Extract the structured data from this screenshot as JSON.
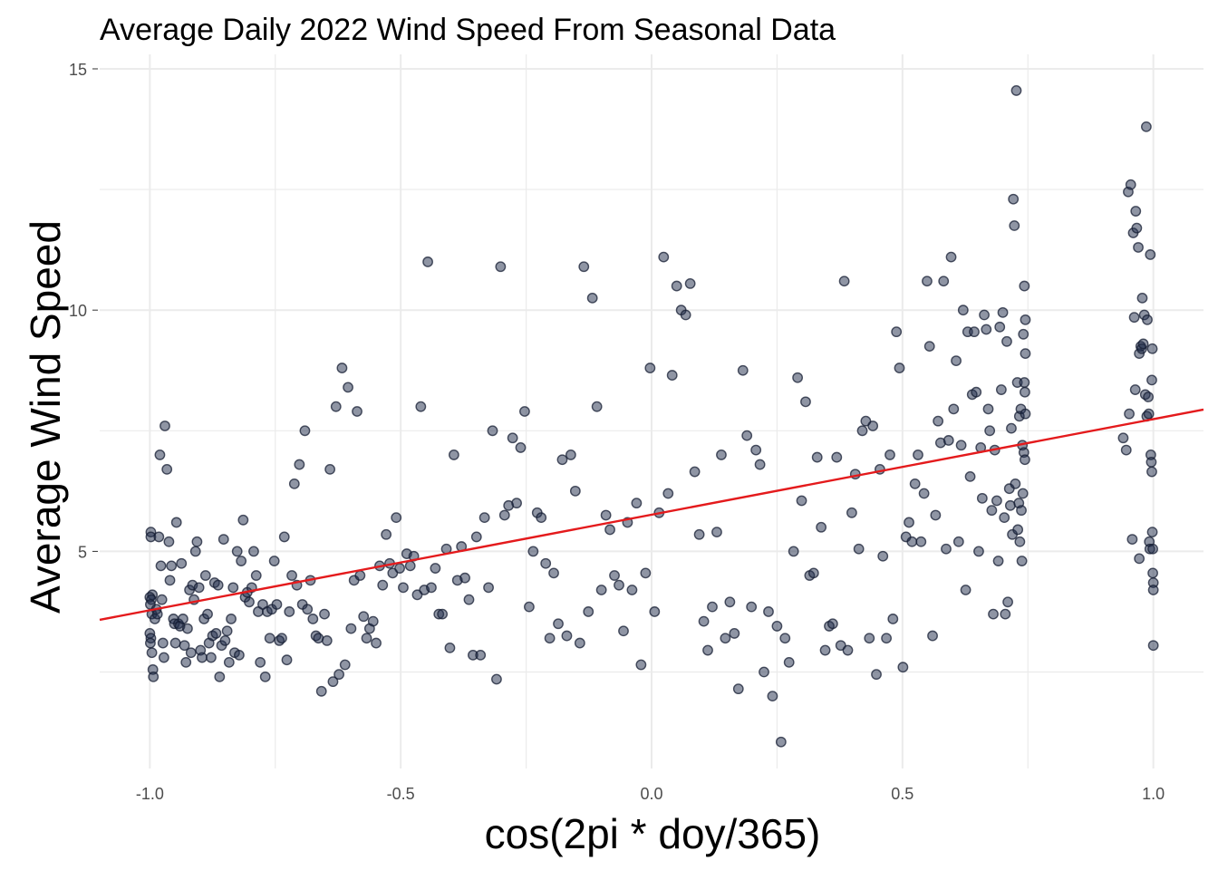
{
  "chart_data": {
    "type": "scatter",
    "title": "Average Daily 2022 Wind Speed From Seasonal Data",
    "xlabel": "cos(2pi * doy/365)",
    "ylabel": "Average Wind Speed",
    "xlim": [
      -1.1,
      1.1
    ],
    "ylim": [
      0.5,
      15.3
    ],
    "x_ticks": [
      -1.0,
      -0.5,
      0.0,
      0.5,
      1.0
    ],
    "x_tick_labels": [
      "-1.0",
      "-0.5",
      "0.0",
      "0.5",
      "1.0"
    ],
    "y_ticks": [
      5,
      10,
      15
    ],
    "y_tick_labels": [
      "5",
      "10",
      "15"
    ],
    "grid": true,
    "point_color": "#1f2b49",
    "fit_color": "#e41a1c",
    "fit_line": {
      "intercept": 5.76,
      "slope": 1.98
    },
    "points": [
      [
        -0.998,
        5.4
      ],
      [
        -0.998,
        5.3
      ],
      [
        -0.995,
        4.1
      ],
      [
        -1.0,
        4.05
      ],
      [
        -0.997,
        4.0
      ],
      [
        -0.999,
        3.9
      ],
      [
        -0.996,
        3.7
      ],
      [
        -1.0,
        3.3
      ],
      [
        -0.998,
        3.2
      ],
      [
        -0.999,
        3.1
      ],
      [
        -0.996,
        2.9
      ],
      [
        -0.994,
        2.55
      ],
      [
        -0.993,
        2.4
      ],
      [
        -0.99,
        3.6
      ],
      [
        -0.987,
        3.8
      ],
      [
        -0.985,
        3.7
      ],
      [
        -0.982,
        5.3
      ],
      [
        -0.98,
        7.0
      ],
      [
        -0.978,
        4.7
      ],
      [
        -0.976,
        4.0
      ],
      [
        -0.974,
        3.1
      ],
      [
        -0.972,
        2.8
      ],
      [
        -0.97,
        7.6
      ],
      [
        -0.966,
        6.7
      ],
      [
        -0.962,
        5.2
      ],
      [
        -0.96,
        4.4
      ],
      [
        -0.957,
        4.7
      ],
      [
        -0.953,
        3.6
      ],
      [
        -0.951,
        3.5
      ],
      [
        -0.949,
        3.1
      ],
      [
        -0.947,
        5.6
      ],
      [
        -0.943,
        3.5
      ],
      [
        -0.94,
        3.45
      ],
      [
        -0.937,
        4.75
      ],
      [
        -0.934,
        3.6
      ],
      [
        -0.931,
        3.05
      ],
      [
        -0.928,
        2.7
      ],
      [
        -0.925,
        3.4
      ],
      [
        -0.921,
        4.2
      ],
      [
        -0.918,
        2.9
      ],
      [
        -0.915,
        4.3
      ],
      [
        -0.912,
        4.0
      ],
      [
        -0.909,
        5.0
      ],
      [
        -0.906,
        5.2
      ],
      [
        -0.902,
        4.25
      ],
      [
        -0.899,
        2.95
      ],
      [
        -0.896,
        2.8
      ],
      [
        -0.892,
        3.6
      ],
      [
        -0.889,
        4.5
      ],
      [
        -0.885,
        3.7
      ],
      [
        -0.882,
        3.1
      ],
      [
        -0.878,
        2.8
      ],
      [
        -0.875,
        3.25
      ],
      [
        -0.871,
        4.35
      ],
      [
        -0.868,
        3.3
      ],
      [
        -0.864,
        4.3
      ],
      [
        -0.861,
        2.4
      ],
      [
        -0.857,
        3.05
      ],
      [
        -0.853,
        5.25
      ],
      [
        -0.85,
        3.15
      ],
      [
        -0.846,
        3.35
      ],
      [
        -0.842,
        2.7
      ],
      [
        -0.838,
        3.6
      ],
      [
        -0.834,
        4.25
      ],
      [
        -0.831,
        2.9
      ],
      [
        -0.826,
        5.0
      ],
      [
        -0.822,
        2.85
      ],
      [
        -0.818,
        4.8
      ],
      [
        -0.814,
        5.65
      ],
      [
        -0.81,
        4.05
      ],
      [
        -0.806,
        4.15
      ],
      [
        -0.802,
        3.95
      ],
      [
        -0.797,
        4.25
      ],
      [
        -0.793,
        5.0
      ],
      [
        -0.788,
        4.5
      ],
      [
        -0.784,
        3.75
      ],
      [
        -0.78,
        2.7
      ],
      [
        -0.775,
        3.9
      ],
      [
        -0.77,
        2.4
      ],
      [
        -0.766,
        3.75
      ],
      [
        -0.761,
        3.2
      ],
      [
        -0.757,
        3.8
      ],
      [
        -0.752,
        4.8
      ],
      [
        -0.747,
        3.9
      ],
      [
        -0.742,
        3.15
      ],
      [
        -0.737,
        3.2
      ],
      [
        -0.732,
        5.3
      ],
      [
        -0.727,
        2.75
      ],
      [
        -0.722,
        3.75
      ],
      [
        -0.717,
        4.5
      ],
      [
        -0.712,
        6.4
      ],
      [
        -0.707,
        4.3
      ],
      [
        -0.702,
        6.8
      ],
      [
        -0.696,
        3.9
      ],
      [
        -0.691,
        7.5
      ],
      [
        -0.686,
        3.8
      ],
      [
        -0.68,
        4.4
      ],
      [
        -0.675,
        3.6
      ],
      [
        -0.669,
        3.25
      ],
      [
        -0.664,
        3.2
      ],
      [
        -0.658,
        2.1
      ],
      [
        -0.652,
        3.7
      ],
      [
        -0.647,
        3.15
      ],
      [
        -0.641,
        6.7
      ],
      [
        -0.635,
        2.3
      ],
      [
        -0.629,
        8.0
      ],
      [
        -0.623,
        2.45
      ],
      [
        -0.617,
        8.8
      ],
      [
        -0.611,
        2.65
      ],
      [
        -0.605,
        8.4
      ],
      [
        -0.599,
        3.4
      ],
      [
        -0.593,
        4.4
      ],
      [
        -0.587,
        7.9
      ],
      [
        -0.581,
        4.5
      ],
      [
        -0.574,
        3.65
      ],
      [
        -0.568,
        3.2
      ],
      [
        -0.562,
        3.4
      ],
      [
        -0.555,
        3.55
      ],
      [
        -0.549,
        3.1
      ],
      [
        -0.542,
        4.7
      ],
      [
        -0.536,
        4.3
      ],
      [
        -0.529,
        5.35
      ],
      [
        -0.522,
        4.75
      ],
      [
        -0.516,
        4.55
      ],
      [
        -0.509,
        5.7
      ],
      [
        -0.502,
        4.65
      ],
      [
        -0.495,
        4.25
      ],
      [
        -0.488,
        4.95
      ],
      [
        -0.481,
        4.7
      ],
      [
        -0.474,
        4.9
      ],
      [
        -0.467,
        4.1
      ],
      [
        -0.46,
        8.0
      ],
      [
        -0.453,
        4.2
      ],
      [
        -0.446,
        11.0
      ],
      [
        -0.439,
        4.25
      ],
      [
        -0.431,
        4.65
      ],
      [
        -0.424,
        3.7
      ],
      [
        -0.417,
        3.7
      ],
      [
        -0.409,
        5.05
      ],
      [
        -0.402,
        3.0
      ],
      [
        -0.394,
        7.0
      ],
      [
        -0.387,
        4.4
      ],
      [
        -0.379,
        5.1
      ],
      [
        -0.372,
        4.45
      ],
      [
        -0.364,
        4.0
      ],
      [
        -0.356,
        2.85
      ],
      [
        -0.349,
        5.3
      ],
      [
        -0.341,
        2.85
      ],
      [
        -0.333,
        5.7
      ],
      [
        -0.325,
        4.25
      ],
      [
        -0.317,
        7.5
      ],
      [
        -0.309,
        2.35
      ],
      [
        -0.301,
        10.9
      ],
      [
        -0.293,
        5.75
      ],
      [
        -0.285,
        5.95
      ],
      [
        -0.277,
        7.35
      ],
      [
        -0.269,
        6.0
      ],
      [
        -0.261,
        7.15
      ],
      [
        -0.253,
        7.9
      ],
      [
        -0.244,
        3.85
      ],
      [
        -0.236,
        5.0
      ],
      [
        -0.228,
        5.8
      ],
      [
        -0.22,
        5.7
      ],
      [
        -0.211,
        4.75
      ],
      [
        -0.203,
        3.2
      ],
      [
        -0.195,
        4.55
      ],
      [
        -0.186,
        3.5
      ],
      [
        -0.178,
        6.9
      ],
      [
        -0.169,
        3.25
      ],
      [
        -0.161,
        7.0
      ],
      [
        -0.152,
        6.25
      ],
      [
        -0.143,
        3.1
      ],
      [
        -0.135,
        10.9
      ],
      [
        -0.126,
        3.75
      ],
      [
        -0.118,
        10.25
      ],
      [
        -0.109,
        8.0
      ],
      [
        -0.1,
        4.2
      ],
      [
        -0.091,
        5.75
      ],
      [
        -0.083,
        5.45
      ],
      [
        -0.074,
        4.5
      ],
      [
        -0.065,
        4.3
      ],
      [
        -0.056,
        3.35
      ],
      [
        -0.048,
        5.6
      ],
      [
        -0.039,
        4.2
      ],
      [
        -0.03,
        6.0
      ],
      [
        -0.021,
        2.65
      ],
      [
        -0.012,
        4.55
      ],
      [
        -0.003,
        8.8
      ],
      [
        0.006,
        3.75
      ],
      [
        0.015,
        5.8
      ],
      [
        0.024,
        11.1
      ],
      [
        0.033,
        6.2
      ],
      [
        0.041,
        8.65
      ],
      [
        0.05,
        10.5
      ],
      [
        0.059,
        10.0
      ],
      [
        0.068,
        9.9
      ],
      [
        0.077,
        10.55
      ],
      [
        0.086,
        6.65
      ],
      [
        0.095,
        5.35
      ],
      [
        0.104,
        3.55
      ],
      [
        0.112,
        2.95
      ],
      [
        0.121,
        3.85
      ],
      [
        0.13,
        5.4
      ],
      [
        0.139,
        7.0
      ],
      [
        0.147,
        3.2
      ],
      [
        0.156,
        3.95
      ],
      [
        0.165,
        3.3
      ],
      [
        0.173,
        2.15
      ],
      [
        0.182,
        8.75
      ],
      [
        0.19,
        7.4
      ],
      [
        0.199,
        3.85
      ],
      [
        0.208,
        7.1
      ],
      [
        0.216,
        6.8
      ],
      [
        0.224,
        2.5
      ],
      [
        0.233,
        3.75
      ],
      [
        0.241,
        2.0
      ],
      [
        0.25,
        3.45
      ],
      [
        0.258,
        1.05
      ],
      [
        0.266,
        3.2
      ],
      [
        0.274,
        2.7
      ],
      [
        0.283,
        5.0
      ],
      [
        0.291,
        8.6
      ],
      [
        0.299,
        6.05
      ],
      [
        0.307,
        8.1
      ],
      [
        0.315,
        4.5
      ],
      [
        0.323,
        4.55
      ],
      [
        0.33,
        6.95
      ],
      [
        0.338,
        5.5
      ],
      [
        0.346,
        2.95
      ],
      [
        0.354,
        3.45
      ],
      [
        0.361,
        3.5
      ],
      [
        0.369,
        6.95
      ],
      [
        0.377,
        3.05
      ],
      [
        0.384,
        10.6
      ],
      [
        0.391,
        2.95
      ],
      [
        0.399,
        5.8
      ],
      [
        0.406,
        6.6
      ],
      [
        0.413,
        5.05
      ],
      [
        0.42,
        7.5
      ],
      [
        0.427,
        7.7
      ],
      [
        0.434,
        3.2
      ],
      [
        0.441,
        7.6
      ],
      [
        0.448,
        2.45
      ],
      [
        0.455,
        6.7
      ],
      [
        0.461,
        4.9
      ],
      [
        0.468,
        3.2
      ],
      [
        0.475,
        7.0
      ],
      [
        0.481,
        3.6
      ],
      [
        0.488,
        9.55
      ],
      [
        0.494,
        8.8
      ],
      [
        0.501,
        2.6
      ],
      [
        0.507,
        5.3
      ],
      [
        0.513,
        5.6
      ],
      [
        0.519,
        5.2
      ],
      [
        0.525,
        6.4
      ],
      [
        0.531,
        7.0
      ],
      [
        0.537,
        5.2
      ],
      [
        0.543,
        6.2
      ],
      [
        0.549,
        10.6
      ],
      [
        0.554,
        9.25
      ],
      [
        0.56,
        3.25
      ],
      [
        0.566,
        5.75
      ],
      [
        0.571,
        7.7
      ],
      [
        0.576,
        7.25
      ],
      [
        0.582,
        10.6
      ],
      [
        0.587,
        5.05
      ],
      [
        0.592,
        7.3
      ],
      [
        0.597,
        11.1
      ],
      [
        0.602,
        7.95
      ],
      [
        0.607,
        8.95
      ],
      [
        0.612,
        5.2
      ],
      [
        0.617,
        7.2
      ],
      [
        0.621,
        10.0
      ],
      [
        0.626,
        4.2
      ],
      [
        0.63,
        9.55
      ],
      [
        0.635,
        6.55
      ],
      [
        0.639,
        8.25
      ],
      [
        0.643,
        9.55
      ],
      [
        0.647,
        8.3
      ],
      [
        0.652,
        5.0
      ],
      [
        0.656,
        7.15
      ],
      [
        0.659,
        6.1
      ],
      [
        0.663,
        9.9
      ],
      [
        0.667,
        9.6
      ],
      [
        0.671,
        7.95
      ],
      [
        0.674,
        7.5
      ],
      [
        0.678,
        5.85
      ],
      [
        0.681,
        3.7
      ],
      [
        0.684,
        7.1
      ],
      [
        0.688,
        6.05
      ],
      [
        0.691,
        4.8
      ],
      [
        0.694,
        9.65
      ],
      [
        0.697,
        8.35
      ],
      [
        0.7,
        9.95
      ],
      [
        0.703,
        5.7
      ],
      [
        0.705,
        3.7
      ],
      [
        0.708,
        9.35
      ],
      [
        0.71,
        3.95
      ],
      [
        0.713,
        6.3
      ],
      [
        0.715,
        5.95
      ],
      [
        0.717,
        7.55
      ],
      [
        0.719,
        5.35
      ],
      [
        0.721,
        12.3
      ],
      [
        0.723,
        11.75
      ],
      [
        0.725,
        6.4
      ],
      [
        0.727,
        14.55
      ],
      [
        0.729,
        8.5
      ],
      [
        0.73,
        5.45
      ],
      [
        0.732,
        6.0
      ],
      [
        0.733,
        7.8
      ],
      [
        0.734,
        5.2
      ],
      [
        0.736,
        7.95
      ],
      [
        0.737,
        5.85
      ],
      [
        0.738,
        4.8
      ],
      [
        0.739,
        7.2
      ],
      [
        0.74,
        6.2
      ],
      [
        0.741,
        9.5
      ],
      [
        0.742,
        7.05
      ],
      [
        0.743,
        10.5
      ],
      [
        0.743,
        8.5
      ],
      [
        0.744,
        8.3
      ],
      [
        0.744,
        6.9
      ],
      [
        0.745,
        9.8
      ],
      [
        0.745,
        9.1
      ],
      [
        0.745,
        7.85
      ],
      [
        0.95,
        12.45
      ],
      [
        0.955,
        12.6
      ],
      [
        0.96,
        11.6
      ],
      [
        0.962,
        9.85
      ],
      [
        0.965,
        12.05
      ],
      [
        0.967,
        11.7
      ],
      [
        0.97,
        11.3
      ],
      [
        0.972,
        9.1
      ],
      [
        0.975,
        9.25
      ],
      [
        0.977,
        9.2
      ],
      [
        0.978,
        10.25
      ],
      [
        0.98,
        9.3
      ],
      [
        0.982,
        9.9
      ],
      [
        0.984,
        8.25
      ],
      [
        0.986,
        13.8
      ],
      [
        0.987,
        7.8
      ],
      [
        0.988,
        9.8
      ],
      [
        0.99,
        8.2
      ],
      [
        0.991,
        7.85
      ],
      [
        0.992,
        5.2
      ],
      [
        0.993,
        5.05
      ],
      [
        0.994,
        11.15
      ],
      [
        0.995,
        7.0
      ],
      [
        0.996,
        6.85
      ],
      [
        0.997,
        6.65
      ],
      [
        0.997,
        8.55
      ],
      [
        0.998,
        9.2
      ],
      [
        0.998,
        5.4
      ],
      [
        0.999,
        5.05
      ],
      [
        0.999,
        4.55
      ],
      [
        1.0,
        4.35
      ],
      [
        1.0,
        4.2
      ],
      [
        1.0,
        3.05
      ],
      [
        0.958,
        5.25
      ],
      [
        0.972,
        4.85
      ],
      [
        0.964,
        8.35
      ],
      [
        0.952,
        7.85
      ],
      [
        0.946,
        7.1
      ],
      [
        0.94,
        7.35
      ]
    ]
  }
}
